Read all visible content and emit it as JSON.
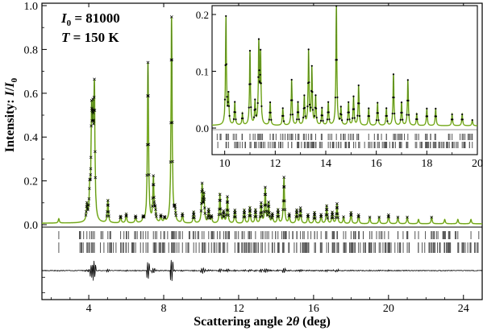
{
  "chart_data": {
    "type": "line",
    "annotations": {
      "intensity_symbol": "I",
      "intensity_subscript": "0",
      "intensity_value": " = 81000",
      "temperature_symbol": "T",
      "temperature_value": " = 150 K"
    },
    "main": {
      "xlabel": "Scattering angle 2θ (deg)",
      "xlabel_prefix": "Scattering angle 2",
      "xlabel_theta": "θ",
      "xlabel_suffix": " (deg)",
      "ylabel": "Intensity: I/I0",
      "ylabel_prefix": "Intensity: ",
      "ylabel_i": "I",
      "ylabel_slash": "/",
      "ylabel_i0": "I",
      "ylabel_sub": "0",
      "xlim": [
        1.5,
        25
      ],
      "ylim": [
        -0.38,
        1.02
      ],
      "xticks": [
        4,
        8,
        12,
        16,
        20,
        24
      ],
      "xtick_labels": [
        "4",
        "8",
        "12",
        "16",
        "20",
        "24"
      ],
      "yticks": [
        0.0,
        0.2,
        0.4,
        0.6,
        0.8,
        1.0
      ],
      "ytick_labels": [
        "0.0",
        "0.2",
        "0.4",
        "0.6",
        "0.8",
        "1.0"
      ],
      "peaks": [
        [
          2.4,
          0.02
        ],
        [
          3.9,
          0.07
        ],
        [
          4.05,
          0.12
        ],
        [
          4.15,
          0.44
        ],
        [
          4.22,
          0.38
        ],
        [
          4.3,
          0.57
        ],
        [
          5.02,
          0.1
        ],
        [
          5.7,
          0.03
        ],
        [
          6.0,
          0.04
        ],
        [
          6.5,
          0.03
        ],
        [
          6.9,
          0.02
        ],
        [
          7.16,
          0.73
        ],
        [
          7.45,
          0.2
        ],
        [
          7.55,
          0.05
        ],
        [
          7.85,
          0.03
        ],
        [
          8.05,
          0.02
        ],
        [
          8.42,
          0.94
        ],
        [
          8.6,
          0.05
        ],
        [
          9.0,
          0.04
        ],
        [
          9.6,
          0.05
        ],
        [
          10.05,
          0.17
        ],
        [
          10.15,
          0.12
        ],
        [
          10.4,
          0.06
        ],
        [
          10.55,
          0.03
        ],
        [
          11.0,
          0.13
        ],
        [
          11.2,
          0.05
        ],
        [
          11.4,
          0.12
        ],
        [
          11.8,
          0.06
        ],
        [
          12.3,
          0.06
        ],
        [
          12.6,
          0.07
        ],
        [
          12.9,
          0.06
        ],
        [
          13.2,
          0.09
        ],
        [
          13.42,
          0.16
        ],
        [
          13.6,
          0.09
        ],
        [
          13.8,
          0.04
        ],
        [
          14.1,
          0.06
        ],
        [
          14.42,
          0.21
        ],
        [
          14.7,
          0.04
        ],
        [
          15.1,
          0.06
        ],
        [
          15.3,
          0.07
        ],
        [
          15.7,
          0.04
        ],
        [
          16.05,
          0.05
        ],
        [
          16.4,
          0.04
        ],
        [
          16.7,
          0.08
        ],
        [
          17.0,
          0.05
        ],
        [
          17.25,
          0.09
        ],
        [
          17.6,
          0.03
        ],
        [
          18.0,
          0.05
        ],
        [
          18.4,
          0.04
        ],
        [
          19.0,
          0.03
        ],
        [
          19.5,
          0.03
        ],
        [
          20.0,
          0.04
        ],
        [
          20.5,
          0.03
        ],
        [
          21.0,
          0.03
        ],
        [
          21.6,
          0.02
        ],
        [
          22.3,
          0.03
        ],
        [
          23.0,
          0.02
        ],
        [
          23.7,
          0.02
        ],
        [
          24.4,
          0.02
        ]
      ]
    },
    "inset": {
      "xlim": [
        9.5,
        20
      ],
      "ylim": [
        -0.06,
        0.22
      ],
      "xticks": [
        10,
        12,
        14,
        16,
        18,
        20
      ],
      "xtick_labels": [
        "10",
        "12",
        "14",
        "16",
        "18",
        "20"
      ],
      "yticks": [
        0.0,
        0.1,
        0.2
      ],
      "ytick_labels": [
        "0.0",
        "0.1",
        "0.2"
      ],
      "peaks": [
        [
          10.05,
          0.19
        ],
        [
          10.15,
          0.05
        ],
        [
          10.4,
          0.04
        ],
        [
          10.7,
          0.02
        ],
        [
          11.0,
          0.13
        ],
        [
          11.2,
          0.04
        ],
        [
          11.35,
          0.14
        ],
        [
          11.42,
          0.12
        ],
        [
          11.8,
          0.04
        ],
        [
          12.3,
          0.03
        ],
        [
          12.65,
          0.08
        ],
        [
          12.9,
          0.04
        ],
        [
          13.15,
          0.05
        ],
        [
          13.32,
          0.13
        ],
        [
          13.45,
          0.1
        ],
        [
          13.6,
          0.05
        ],
        [
          13.85,
          0.03
        ],
        [
          14.1,
          0.04
        ],
        [
          14.42,
          0.21
        ],
        [
          14.6,
          0.03
        ],
        [
          14.9,
          0.04
        ],
        [
          15.1,
          0.05
        ],
        [
          15.3,
          0.07
        ],
        [
          15.7,
          0.03
        ],
        [
          16.05,
          0.04
        ],
        [
          16.4,
          0.03
        ],
        [
          16.68,
          0.09
        ],
        [
          17.0,
          0.04
        ],
        [
          17.25,
          0.08
        ],
        [
          17.6,
          0.02
        ],
        [
          18.0,
          0.03
        ],
        [
          18.35,
          0.03
        ],
        [
          19.0,
          0.02
        ],
        [
          19.4,
          0.02
        ],
        [
          19.8,
          0.01
        ]
      ]
    },
    "colors": {
      "fit": "#9acd32",
      "data_markers": "#000000",
      "reflection_ticks": "#555555",
      "difference": "#000000",
      "axes": "#000000"
    }
  }
}
